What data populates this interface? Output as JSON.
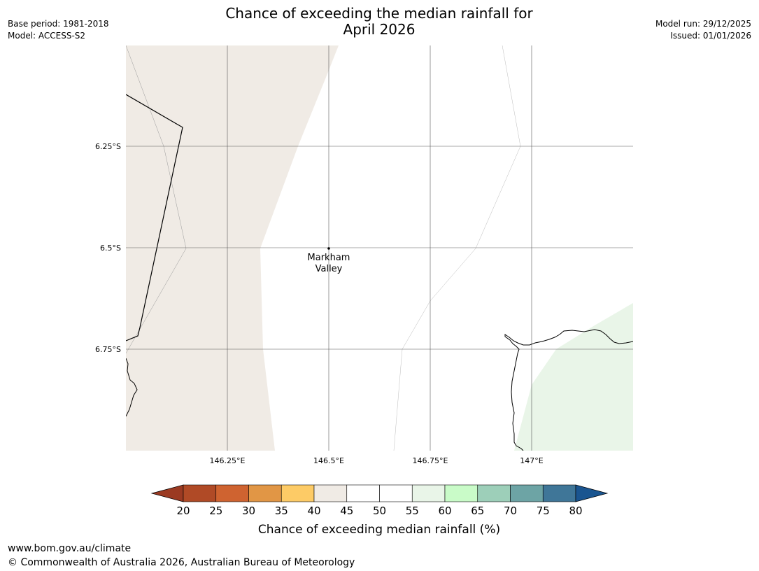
{
  "title": {
    "line1": "Chance of exceeding the median rainfall for",
    "line2": "April 2026"
  },
  "meta_left": {
    "base_period": "Base period: 1981-2018",
    "model": "Model: ACCESS-S2"
  },
  "meta_right": {
    "model_run": "Model run: 29/12/2025",
    "issued": "Issued: 01/01/2026"
  },
  "map": {
    "lat_labels": [
      "6.25°S",
      "6.5°S",
      "6.75°S"
    ],
    "lon_labels": [
      "146.25°E",
      "146.5°E",
      "146.75°E",
      "147°E"
    ],
    "place": {
      "name_line1": "Markham",
      "name_line2": "Valley"
    },
    "colors": {
      "band_40_45": "#f0ebe5",
      "band_55_60": "#e9f5e8",
      "coast": "#000000",
      "grid": "#555555"
    }
  },
  "legend": {
    "title": "Chance of exceeding median rainfall (%)",
    "ticks": [
      "20",
      "25",
      "30",
      "35",
      "40",
      "45",
      "50",
      "55",
      "60",
      "65",
      "70",
      "75",
      "80"
    ],
    "below_color": "#9b3a22",
    "above_color": "#1a5590",
    "colors": [
      "#b04a26",
      "#cf6330",
      "#e19645",
      "#fdcb66",
      "#f0ebe5",
      "#ffffff",
      "#ffffff",
      "#e9f5e8",
      "#c9fbc8",
      "#9dcfb9",
      "#6da4a5",
      "#3f7698"
    ]
  },
  "footer": {
    "url": "www.bom.gov.au/climate",
    "copyright": "© Commonwealth of Australia 2026, Australian Bureau of Meteorology"
  }
}
